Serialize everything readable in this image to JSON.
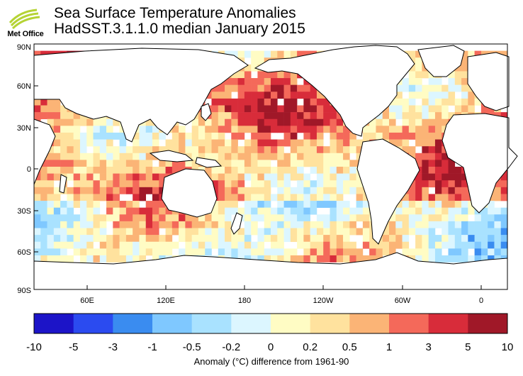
{
  "header": {
    "logo_text": "Met Office",
    "title_line1": "Sea Surface Temperature Anomalies",
    "title_line2": "HadSST.3.1.1.0 median January 2015"
  },
  "map": {
    "lat_labels": [
      "90N",
      "60N",
      "30N",
      "0",
      "30S",
      "60S",
      "90S"
    ],
    "lon_labels": [
      "60E",
      "120E",
      "180",
      "120W",
      "60W",
      "0"
    ]
  },
  "legend": {
    "tick_labels": [
      "-10",
      "-5",
      "-3",
      "-1",
      "-0.5",
      "-0.2",
      "0",
      "0.2",
      "0.5",
      "1",
      "3",
      "5",
      "10"
    ],
    "colors": [
      "#1c14c8",
      "#2b4bf0",
      "#3a8cf0",
      "#7fc8ff",
      "#a9e2ff",
      "#dcf6ff",
      "#fffcc4",
      "#ffe29e",
      "#fbb476",
      "#f4695a",
      "#d82c3a",
      "#a01828"
    ],
    "caption": "Anomaly (°C) difference from 1961-90"
  },
  "colors": {
    "brand_green": "#b5d334",
    "land": "#ffffff",
    "missing": "#ffffff"
  }
}
